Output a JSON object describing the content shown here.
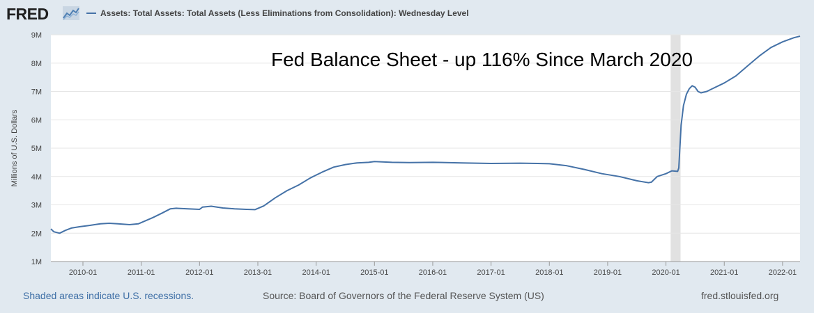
{
  "header": {
    "logo_text": "FRED",
    "legend_label": "Assets: Total Assets: Total Assets (Less Eliminations from Consolidation): Wednesday Level"
  },
  "chart_data": {
    "type": "line",
    "title": "Fed Balance Sheet - up 116% Since March 2020",
    "xlabel": "",
    "ylabel": "Millions of U.S. Dollars",
    "ylim": [
      1000000,
      9000000
    ],
    "xlim": [
      2009.45,
      2022.3
    ],
    "y_ticks": [
      {
        "value": 1000000,
        "label": "1M"
      },
      {
        "value": 2000000,
        "label": "2M"
      },
      {
        "value": 3000000,
        "label": "3M"
      },
      {
        "value": 4000000,
        "label": "4M"
      },
      {
        "value": 5000000,
        "label": "5M"
      },
      {
        "value": 6000000,
        "label": "6M"
      },
      {
        "value": 7000000,
        "label": "7M"
      },
      {
        "value": 8000000,
        "label": "8M"
      },
      {
        "value": 9000000,
        "label": "9M"
      }
    ],
    "x_ticks": [
      {
        "value": 2010,
        "label": "2010-01"
      },
      {
        "value": 2011,
        "label": "2011-01"
      },
      {
        "value": 2012,
        "label": "2012-01"
      },
      {
        "value": 2013,
        "label": "2013-01"
      },
      {
        "value": 2014,
        "label": "2014-01"
      },
      {
        "value": 2015,
        "label": "2015-01"
      },
      {
        "value": 2016,
        "label": "2016-01"
      },
      {
        "value": 2017,
        "label": "2017-01"
      },
      {
        "value": 2018,
        "label": "2018-01"
      },
      {
        "value": 2019,
        "label": "2019-01"
      },
      {
        "value": 2020,
        "label": "2020-01"
      },
      {
        "value": 2021,
        "label": "2021-01"
      },
      {
        "value": 2022,
        "label": "2022-01"
      }
    ],
    "recessions": [
      {
        "start": 2020.08,
        "end": 2020.25
      }
    ],
    "grid": true,
    "series": [
      {
        "name": "Assets: Total Assets: Total Assets (Less Eliminations from Consolidation): Wednesday Level",
        "color": "#4572a7",
        "x": [
          2009.45,
          2009.5,
          2009.6,
          2009.7,
          2009.8,
          2009.95,
          2010.1,
          2010.3,
          2010.45,
          2010.6,
          2010.8,
          2010.95,
          2011.2,
          2011.35,
          2011.5,
          2011.6,
          2011.8,
          2012.0,
          2012.05,
          2012.2,
          2012.4,
          2012.6,
          2012.8,
          2012.95,
          2013.1,
          2013.3,
          2013.5,
          2013.7,
          2013.9,
          2014.1,
          2014.3,
          2014.5,
          2014.7,
          2014.9,
          2015.0,
          2015.3,
          2015.6,
          2016.0,
          2016.5,
          2017.0,
          2017.5,
          2017.8,
          2018.0,
          2018.3,
          2018.6,
          2018.9,
          2019.2,
          2019.5,
          2019.7,
          2019.75,
          2019.85,
          2020.0,
          2020.1,
          2020.2,
          2020.22,
          2020.26,
          2020.3,
          2020.35,
          2020.4,
          2020.45,
          2020.5,
          2020.55,
          2020.6,
          2020.7,
          2020.8,
          2021.0,
          2021.2,
          2021.4,
          2021.6,
          2021.8,
          2022.0,
          2022.2,
          2022.3
        ],
        "values": [
          2150000,
          2050000,
          2000000,
          2100000,
          2180000,
          2230000,
          2270000,
          2330000,
          2350000,
          2330000,
          2300000,
          2330000,
          2550000,
          2700000,
          2860000,
          2880000,
          2860000,
          2840000,
          2920000,
          2950000,
          2890000,
          2860000,
          2840000,
          2830000,
          2960000,
          3250000,
          3500000,
          3700000,
          3950000,
          4150000,
          4330000,
          4420000,
          4480000,
          4500000,
          4530000,
          4500000,
          4490000,
          4500000,
          4480000,
          4460000,
          4470000,
          4460000,
          4450000,
          4380000,
          4250000,
          4100000,
          4000000,
          3850000,
          3780000,
          3800000,
          4000000,
          4100000,
          4200000,
          4180000,
          4300000,
          5800000,
          6500000,
          6900000,
          7100000,
          7200000,
          7150000,
          7000000,
          6950000,
          7000000,
          7100000,
          7300000,
          7550000,
          7900000,
          8250000,
          8550000,
          8750000,
          8900000,
          8950000
        ]
      }
    ]
  },
  "footer": {
    "recession_note": "Shaded areas indicate U.S. recessions.",
    "source": "Source: Board of Governors of the Federal Reserve System (US)",
    "site": "fred.stlouisfed.org"
  }
}
